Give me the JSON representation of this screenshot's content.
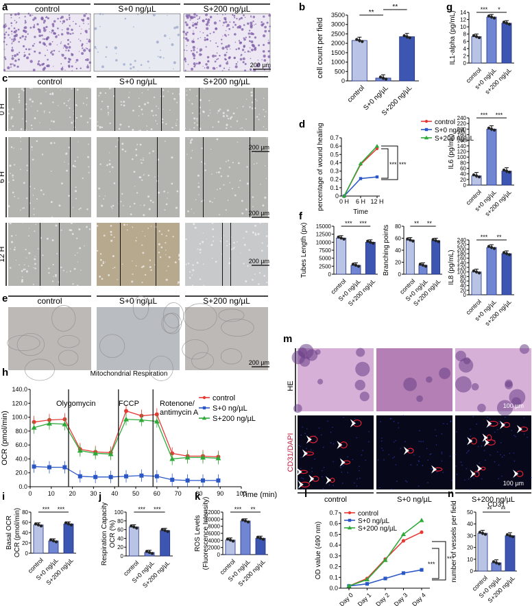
{
  "panel_letters": [
    "a",
    "b",
    "c",
    "d",
    "e",
    "f",
    "g",
    "h",
    "i",
    "j",
    "k",
    "l",
    "m",
    "n"
  ],
  "colors": {
    "control": "#e53935",
    "s0": "#2a56c6",
    "s200": "#2eaa3a",
    "bar_control": "#b9c3e6",
    "bar_s0": "#7186d2",
    "bar_s200": "#3c56b2",
    "crystal_violet": "#7b5aa6",
    "he_pink": "#c898c8",
    "fluor_red": "#e02030"
  },
  "panel_a": {
    "headers": [
      "control",
      "S+0 ng/µL",
      "S+200 ng/µL"
    ],
    "scale": "200 µm"
  },
  "panel_c": {
    "headers": [
      "control",
      "S+0 ng/µL",
      "S+200 ng/µL"
    ],
    "rows": [
      "0 H",
      "6 H",
      "12 H"
    ],
    "scale": "200 µm"
  },
  "panel_e": {
    "headers": [
      "control",
      "S+0 ng/µL",
      "S+200 ng/µL"
    ],
    "scale": "200 µm"
  },
  "panel_m": {
    "row_labels": [
      "HE",
      "CD31/DAPI"
    ],
    "col_labels": [
      "control",
      "S+0 ng/µL",
      "S+200 ng/µL"
    ],
    "scale": "100 µm"
  },
  "chart_data": [
    {
      "id": "b",
      "type": "bar",
      "categories": [
        "control",
        "S+0 ng/µL",
        "S+200 ng/µL"
      ],
      "values": [
        2150,
        150,
        2350
      ],
      "ylabel": "cell count per field",
      "ylim": [
        0,
        3500
      ],
      "yticks": [
        "0",
        "500",
        "1000",
        "1500",
        "2000",
        "2500",
        "3000",
        "3500"
      ],
      "significance": [
        "**",
        "**"
      ]
    },
    {
      "id": "d",
      "type": "line",
      "x": [
        "0 H",
        "6 H",
        "12 H"
      ],
      "series": [
        {
          "name": "control",
          "values": [
            0,
            0.38,
            0.57
          ]
        },
        {
          "name": "S+0 ng/µL",
          "values": [
            0,
            0.21,
            0.23
          ]
        },
        {
          "name": "S+200 ng/µL",
          "values": [
            0,
            0.39,
            0.6
          ]
        }
      ],
      "ylabel": "percentage of wound healing",
      "xlabel": "Time",
      "ylim": [
        0,
        0.7
      ],
      "yticks": [
        "0",
        "0.1",
        "0.2",
        "0.3",
        "0.4",
        "0.5",
        "0.6",
        "0.7"
      ],
      "significance": [
        "***",
        "***"
      ]
    },
    {
      "id": "f1",
      "type": "bar",
      "categories": [
        "control",
        "S+0 ng/µL",
        "S+200 ng/µL"
      ],
      "values": [
        11300,
        2800,
        10000
      ],
      "ylabel": "Tubes Length (px)",
      "ylim": [
        0,
        15000
      ],
      "yticks": [
        "0",
        "2500",
        "5000",
        "7500",
        "10000",
        "12500",
        "15000"
      ],
      "significance": [
        "***",
        "***"
      ]
    },
    {
      "id": "f2",
      "type": "bar",
      "categories": [
        "control",
        "S+0 ng/µL",
        "S+200 ng/µL"
      ],
      "values": [
        57,
        15,
        56
      ],
      "ylabel": "Branching points",
      "ylim": [
        0,
        80
      ],
      "yticks": [
        "0",
        "20",
        "40",
        "60",
        "80"
      ],
      "significance": [
        "**",
        "**"
      ]
    },
    {
      "id": "g1",
      "type": "bar",
      "categories": [
        "control",
        "s+0 ng/µL",
        "s+200 ng/µL"
      ],
      "values": [
        7.3,
        12.7,
        11.0
      ],
      "ylabel": "IL1-alpha (pg/mL)",
      "ylim": [
        0,
        14
      ],
      "yticks": [
        "0",
        "2",
        "4",
        "6",
        "8",
        "10",
        "12",
        "14"
      ],
      "significance": [
        "***",
        "*"
      ]
    },
    {
      "id": "g2",
      "type": "bar",
      "categories": [
        "control",
        "s+0 ng/µL",
        "s+200 ng/µL"
      ],
      "values": [
        33,
        200,
        50
      ],
      "ylabel": "IL6 (pg/mL)",
      "ylim": [
        0,
        240
      ],
      "yticks": [
        "0",
        "20",
        "40",
        "60",
        "80",
        "100",
        "120",
        "140",
        "160",
        "180",
        "200",
        "220",
        "240"
      ],
      "significance": [
        "***",
        "***"
      ]
    },
    {
      "id": "g3",
      "type": "bar",
      "categories": [
        "control",
        "s+0 ng/µL",
        "s+200 ng/µL"
      ],
      "values": [
        100,
        207,
        180
      ],
      "ylabel": "IL8 (pg/mL)",
      "ylim": [
        0,
        240
      ],
      "yticks": [
        "0",
        "20",
        "40",
        "60",
        "80",
        "100",
        "120",
        "140",
        "160",
        "180",
        "200",
        "220",
        "240"
      ],
      "significance": [
        "***",
        "**"
      ]
    },
    {
      "id": "h",
      "type": "line",
      "title": "Mitochondrial Respiration",
      "x": [
        2,
        10,
        18,
        26,
        34,
        42,
        50,
        58,
        66,
        74,
        82,
        90,
        98
      ],
      "series": [
        {
          "name": "control",
          "values": [
            93,
            96,
            97,
            54,
            50,
            49,
            109,
            102,
            104,
            48,
            44,
            44,
            43
          ]
        },
        {
          "name": "S+0 ng/µL",
          "values": [
            29,
            28,
            28,
            15,
            14,
            14,
            15,
            16,
            15,
            10,
            9,
            9,
            9
          ]
        },
        {
          "name": "S+200 ng/µL",
          "values": [
            85,
            91,
            90,
            52,
            48,
            47,
            97,
            96,
            94,
            40,
            42,
            42,
            41
          ]
        }
      ],
      "ylabel": "OCR (pmol/min)",
      "xlabel": "Time (min)",
      "ylim": [
        0,
        140
      ],
      "xlim": [
        0,
        110
      ],
      "yticks": [
        "0.0",
        "20.0",
        "40.0",
        "60.0",
        "80.0",
        "100.0",
        "120.0",
        "140.0"
      ],
      "xticks": [
        "0",
        "10",
        "20",
        "30",
        "40",
        "50",
        "60",
        "70",
        "80",
        "90",
        "100"
      ],
      "annotations": [
        "Olygomycin",
        "FCCP",
        "Rotenone/",
        "antimycin A"
      ],
      "legend": "top-right"
    },
    {
      "id": "i",
      "type": "bar",
      "categories": [
        "control",
        "S+0 ng/µL",
        "S+200 ng/µL"
      ],
      "values": [
        55,
        24,
        57
      ],
      "ylabel": "Basal OCR",
      "ylabel2": "OCR (pmol/min)",
      "ylim": [
        0,
        80
      ],
      "yticks": [
        "0",
        "20",
        "40",
        "60",
        "80"
      ],
      "significance": [
        "***",
        "***"
      ]
    },
    {
      "id": "j",
      "type": "bar",
      "categories": [
        "control",
        "S+0 ng/µL",
        "S+200 ng/µL"
      ],
      "values": [
        66,
        8,
        58
      ],
      "ylabel": "Respiration Capacity",
      "ylabel2": "OCR (%)",
      "ylim": [
        0,
        100
      ],
      "yticks": [
        "0",
        "20",
        "40",
        "60",
        "80",
        "100"
      ],
      "significance": [
        "***",
        "***"
      ]
    },
    {
      "id": "k",
      "type": "bar",
      "categories": [
        "control",
        "S+0 ng/µL",
        "S+200 ng/µL"
      ],
      "values": [
        4100,
        9500,
        4600
      ],
      "ylabel": "ROS Levels",
      "ylabel2": "(Fluorescence Intensity)",
      "ylim": [
        0,
        12000
      ],
      "yticks": [
        "0",
        "2000",
        "4000",
        "6000",
        "8000",
        "10000",
        "12000"
      ],
      "significance": [
        "***",
        "**"
      ]
    },
    {
      "id": "l",
      "type": "line",
      "x": [
        "Day 0",
        "Day 1",
        "Day 2",
        "Day 3",
        "Day 4"
      ],
      "series": [
        {
          "name": "control",
          "values": [
            0.02,
            0.09,
            0.27,
            0.44,
            0.52
          ]
        },
        {
          "name": "S+0 ng/µL",
          "values": [
            0.02,
            0.04,
            0.09,
            0.14,
            0.17
          ]
        },
        {
          "name": "S+200 ng/µL",
          "values": [
            0.02,
            0.08,
            0.26,
            0.5,
            0.63
          ]
        }
      ],
      "ylabel": "OD value (490 nm)",
      "ylim": [
        0,
        0.7
      ],
      "yticks": [
        "0.0",
        "0.1",
        "0.2",
        "0.3",
        "0.4",
        "0.5",
        "0.6",
        "0.7"
      ],
      "significance": [
        "***",
        "***"
      ],
      "legend": "top-left"
    },
    {
      "id": "n",
      "type": "bar",
      "title": "CD31",
      "categories": [
        "control",
        "S+0 ng/µL",
        "S+200 ng/µL"
      ],
      "values": [
        32,
        7,
        30
      ],
      "ylabel": "number of vessels per field",
      "ylim": [
        0,
        50
      ],
      "yticks": [
        "0",
        "10",
        "20",
        "30",
        "40",
        "50"
      ],
      "significance": [
        "**",
        "**"
      ]
    }
  ]
}
